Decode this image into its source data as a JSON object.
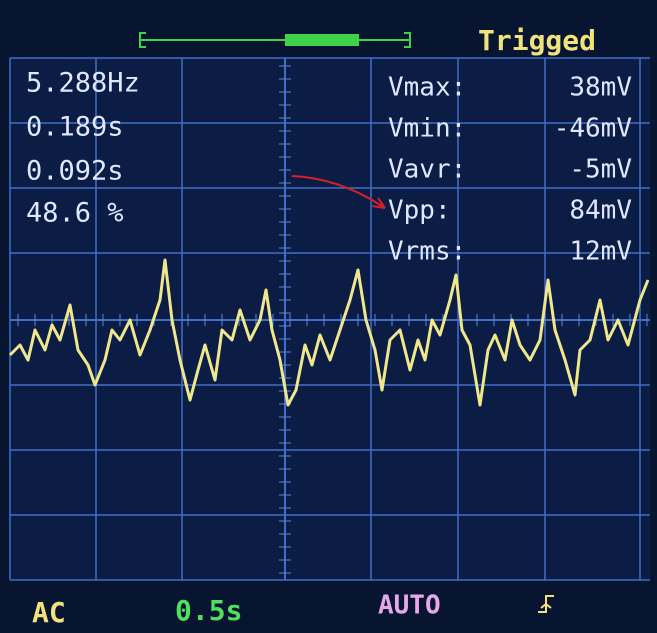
{
  "header": {
    "status": "Trigged"
  },
  "measurements": {
    "left": [
      "5.288Hz",
      "0.189s",
      "0.092s",
      "48.6 %"
    ],
    "right": [
      {
        "label": "Vmax:",
        "value": "38mV"
      },
      {
        "label": "Vmin:",
        "value": "-46mV"
      },
      {
        "label": "Vavr:",
        "value": "-5mV"
      },
      {
        "label": "Vpp:",
        "value": "84mV"
      },
      {
        "label": "Vrms:",
        "value": "12mV"
      }
    ]
  },
  "footer": {
    "coupling": "AC",
    "timebase": "0.5s",
    "trigger_mode": "AUTO"
  }
}
